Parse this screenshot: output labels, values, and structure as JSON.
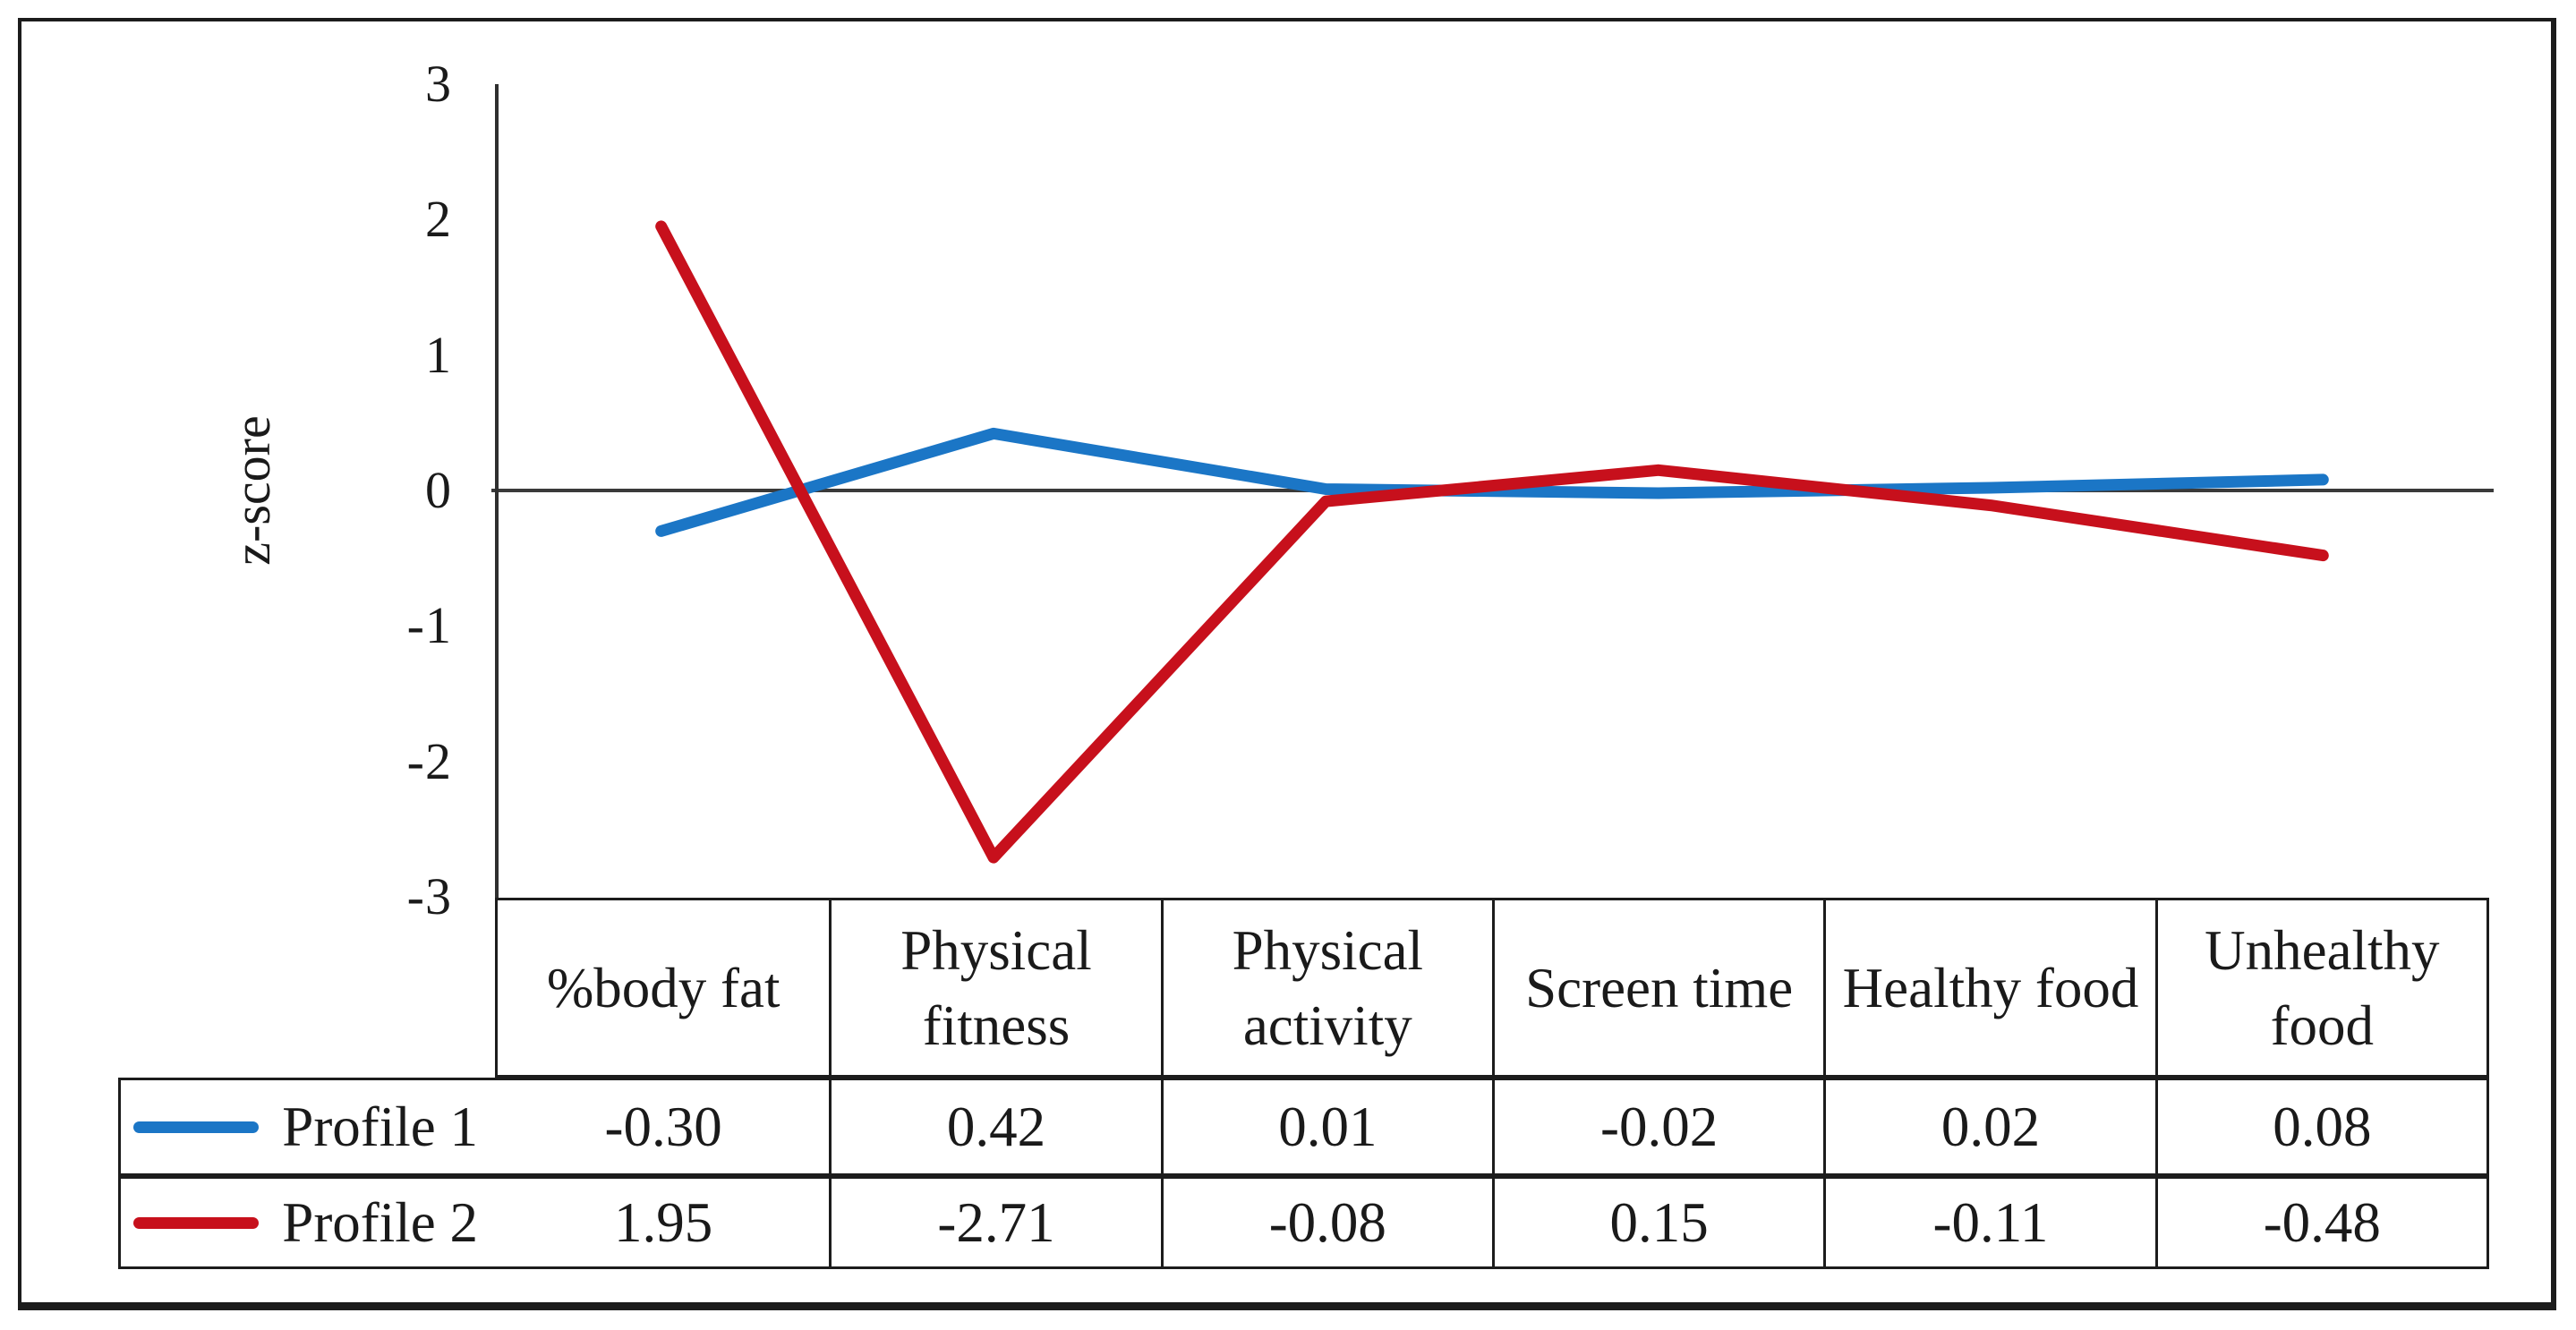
{
  "figure": {
    "background": "#ffffff",
    "frame_color": "#1c1c1c"
  },
  "chart_data": {
    "type": "line",
    "title": "",
    "xlabel": "",
    "ylabel": "z-score",
    "ylim": [
      -3,
      3
    ],
    "y_ticks": [
      3,
      2,
      1,
      0,
      -1,
      -2,
      -3
    ],
    "grid": false,
    "zero_line": true,
    "legend_position": "data-table-left",
    "categories": [
      "%body fat",
      "Physical fitness",
      "Physical activity",
      "Screen time",
      "Healthy food",
      "Unhealthy food"
    ],
    "series": [
      {
        "name": "Profile 1",
        "color": "#1b76c6",
        "values": [
          -0.3,
          0.42,
          0.01,
          -0.02,
          0.02,
          0.08
        ]
      },
      {
        "name": "Profile 2",
        "color": "#c7101c",
        "values": [
          1.95,
          -2.71,
          -0.08,
          0.15,
          -0.11,
          -0.48
        ]
      }
    ],
    "axis_color": "#2f2f2f",
    "zero_line_color": "#3a3a3a"
  },
  "table": {
    "headers": [
      "%body fat",
      "Physical fitness",
      "Physical activity",
      "Screen time",
      "Healthy food",
      "Unhealthy food"
    ],
    "rows": [
      {
        "label": "Profile 1",
        "values": [
          "-0.30",
          "0.42",
          "0.01",
          "-0.02",
          "0.02",
          "0.08"
        ]
      },
      {
        "label": "Profile 2",
        "values": [
          "1.95",
          "-2.71",
          "-0.08",
          "0.15",
          "-0.11",
          "-0.48"
        ]
      }
    ]
  }
}
